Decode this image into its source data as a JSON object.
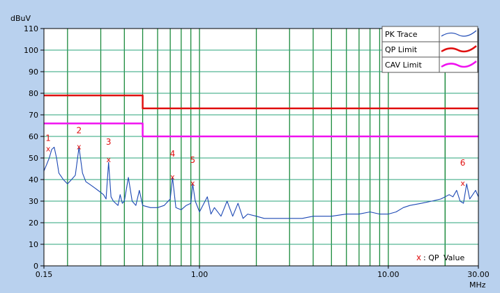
{
  "chart_data": {
    "type": "line",
    "ylabel": "dBuV",
    "xlabel": "MHz",
    "x_scale": "log",
    "xlim": [
      0.15,
      30.0
    ],
    "ylim": [
      0,
      110
    ],
    "x_tick_labels": [
      "0.15",
      "1.00",
      "10.00",
      "30.00"
    ],
    "y_tick_labels": [
      "0",
      "10",
      "20",
      "30",
      "40",
      "50",
      "60",
      "70",
      "80",
      "90",
      "100",
      "110"
    ],
    "grid": true,
    "legend_position": "top-right",
    "legend": [
      {
        "label": "PK Trace",
        "color": "#1c48b4"
      },
      {
        "label": "QP Limit",
        "color": "#e01010"
      },
      {
        "label": "CAV Limit",
        "color": "#f010f0"
      }
    ],
    "qp_limit": {
      "x": [
        0.15,
        0.5,
        0.5,
        30.0
      ],
      "y": [
        79,
        79,
        73,
        73
      ]
    },
    "cav_limit": {
      "x": [
        0.15,
        0.5,
        0.5,
        30.0
      ],
      "y": [
        66,
        66,
        60,
        60
      ]
    },
    "pk_trace": {
      "x": [
        0.15,
        0.155,
        0.16,
        0.165,
        0.17,
        0.175,
        0.18,
        0.19,
        0.2,
        0.21,
        0.22,
        0.23,
        0.24,
        0.25,
        0.26,
        0.27,
        0.28,
        0.29,
        0.3,
        0.31,
        0.32,
        0.33,
        0.34,
        0.35,
        0.36,
        0.37,
        0.38,
        0.39,
        0.4,
        0.42,
        0.44,
        0.46,
        0.48,
        0.5,
        0.55,
        0.6,
        0.65,
        0.7,
        0.72,
        0.75,
        0.8,
        0.85,
        0.9,
        0.92,
        0.95,
        1.0,
        1.1,
        1.15,
        1.2,
        1.3,
        1.4,
        1.5,
        1.6,
        1.7,
        1.8,
        2.0,
        2.2,
        2.5,
        3.0,
        3.5,
        4.0,
        5.0,
        6.0,
        7.0,
        8.0,
        9.0,
        10.0,
        11.0,
        12.0,
        13.0,
        15.0,
        17.0,
        19.0,
        21.0,
        22.0,
        23.0,
        24.0,
        25.0,
        26.0,
        27.0,
        28.0,
        29.0,
        30.0
      ],
      "y": [
        44,
        47,
        50,
        54,
        55,
        50,
        43,
        40,
        38,
        40,
        42,
        55,
        43,
        39,
        38,
        37,
        36,
        35,
        34,
        33,
        31,
        48,
        32,
        30,
        29,
        28,
        33,
        29,
        30,
        41,
        30,
        28,
        35,
        28,
        27,
        27,
        28,
        31,
        41,
        27,
        26,
        28,
        29,
        38,
        30,
        25,
        32,
        24,
        27,
        23,
        30,
        23,
        29,
        22,
        24,
        23,
        22,
        22,
        22,
        22,
        23,
        23,
        24,
        24,
        25,
        24,
        24,
        25,
        27,
        28,
        29,
        30,
        31,
        33,
        32,
        35,
        30,
        29,
        38,
        31,
        33,
        35,
        32
      ]
    },
    "markers": [
      {
        "label": "1",
        "x": 0.158,
        "y": 54
      },
      {
        "label": "2",
        "x": 0.23,
        "y": 55
      },
      {
        "label": "3",
        "x": 0.33,
        "y": 49
      },
      {
        "label": "4",
        "x": 0.72,
        "y": 41
      },
      {
        "label": "5",
        "x": 0.92,
        "y": 38
      },
      {
        "label": "6",
        "x": 24.8,
        "y": 38
      }
    ],
    "qp_value_legend": {
      "symbol": "x",
      "label": ": QP",
      "value_label": "Value"
    }
  }
}
